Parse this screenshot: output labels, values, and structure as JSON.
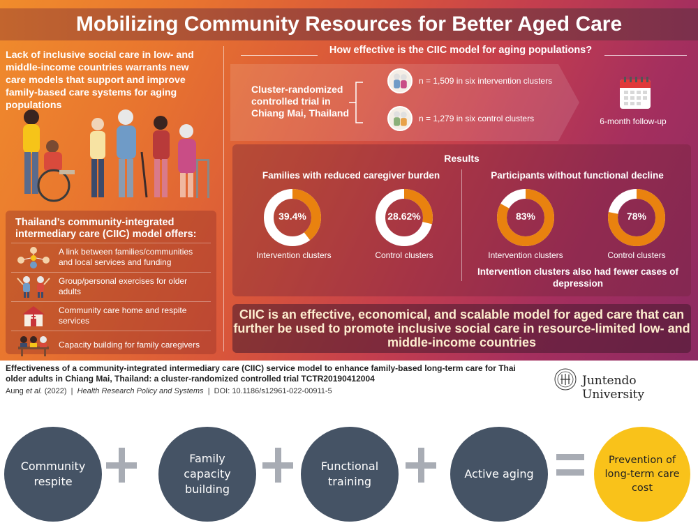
{
  "infographic": {
    "title": "Mobilizing Community Resources for Better Aged Care",
    "intro": "Lack of inclusive social care in low- and middle-income countries warrants new care models that support and improve family-based care systems for aging populations",
    "model_box": {
      "title": "Thailand’s community-integrated intermediary care (CIIC) model offers:",
      "items": [
        {
          "icon": "community-network-icon",
          "text": "A link between families/communities and local services and funding"
        },
        {
          "icon": "exercise-icon",
          "text": "Group/personal exercises for older adults"
        },
        {
          "icon": "care-home-icon",
          "text": "Community care home and respite services"
        },
        {
          "icon": "training-icon",
          "text": "Capacity building for family caregivers"
        }
      ]
    },
    "question": "How effective is the CIIC model for aging populations?",
    "trial": {
      "label": "Cluster-randomized controlled trial in Chiang Mai, Thailand",
      "arms": [
        {
          "text": "n = 1,509 in six intervention clusters"
        },
        {
          "text": "n = 1,279 in six control clusters"
        }
      ],
      "followup": "6-month follow-up"
    },
    "results": {
      "title": "Results",
      "groups": [
        {
          "heading": "Families with reduced caregiver burden",
          "items": [
            {
              "value_text": "39.4%",
              "value": 39.4,
              "label": "Intervention clusters"
            },
            {
              "value_text": "28.62%",
              "value": 28.62,
              "label": "Control clusters"
            }
          ]
        },
        {
          "heading": "Participants without functional decline",
          "items": [
            {
              "value_text": "83%",
              "value": 83,
              "label": "Intervention clusters"
            },
            {
              "value_text": "78%",
              "value": 78,
              "label": "Control clusters"
            }
          ]
        }
      ],
      "note": "Intervention clusters also had fewer cases of depression"
    },
    "conclusion": "CIIC is an effective, economical, and scalable model for aged care that can further be used to promote inclusive social care in resource-limited low- and middle-income countries",
    "colors": {
      "donut_fill": "#e9820f",
      "donut_track": "#ffffff",
      "accent_text": "#fdeecf"
    }
  },
  "citation": {
    "title": "Effectiveness of a community-integrated intermediary care (CIIC) service model to enhance family-based long-term care for Thai older adults in Chiang Mai, Thailand: a cluster-randomized controlled trial TCTR20190412004",
    "authors": "Aung",
    "et_al": "et al.",
    "year": "(2022)",
    "separator": "|",
    "journal": "Health Research Policy and Systems",
    "doi": "DOI: 10.1186/s12961-022-00911-5",
    "institution": "Juntendo University"
  },
  "equation": {
    "terms": [
      "Community respite",
      "Family capacity building",
      "Functional training",
      "Active aging"
    ],
    "result": "Prevention of long-term care cost",
    "colors": {
      "term_circle": "#455365",
      "result_circle": "#f9c21a",
      "operator": "#a8acb4"
    }
  }
}
